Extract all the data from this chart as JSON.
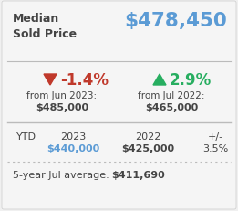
{
  "bg_color": "#f0f0f0",
  "inner_bg": "#f7f7f7",
  "title_label": "Median\nSold Price",
  "main_price": "$478,450",
  "main_price_color": "#5b9bd5",
  "down_pct": "-1.4%",
  "down_pct_color": "#c0392b",
  "down_from_label": "from Jun 2023:",
  "down_from_price": "$485,000",
  "up_pct": "2.9%",
  "up_pct_color": "#27ae60",
  "up_from_label": "from Jul 2022:",
  "up_from_price": "$465,000",
  "ytd_label": "YTD",
  "ytd_2023_label": "2023",
  "ytd_2022_label": "2022",
  "ytd_pm_label": "+/-",
  "ytd_2023_val": "$440,000",
  "ytd_2023_val_color": "#5b9bd5",
  "ytd_2022_val": "$425,000",
  "ytd_pm_val": "3.5%",
  "five_year_label": "5-year Jul average:",
  "five_year_val": "$411,690",
  "text_color": "#444444",
  "divider_color": "#bbbbbb"
}
